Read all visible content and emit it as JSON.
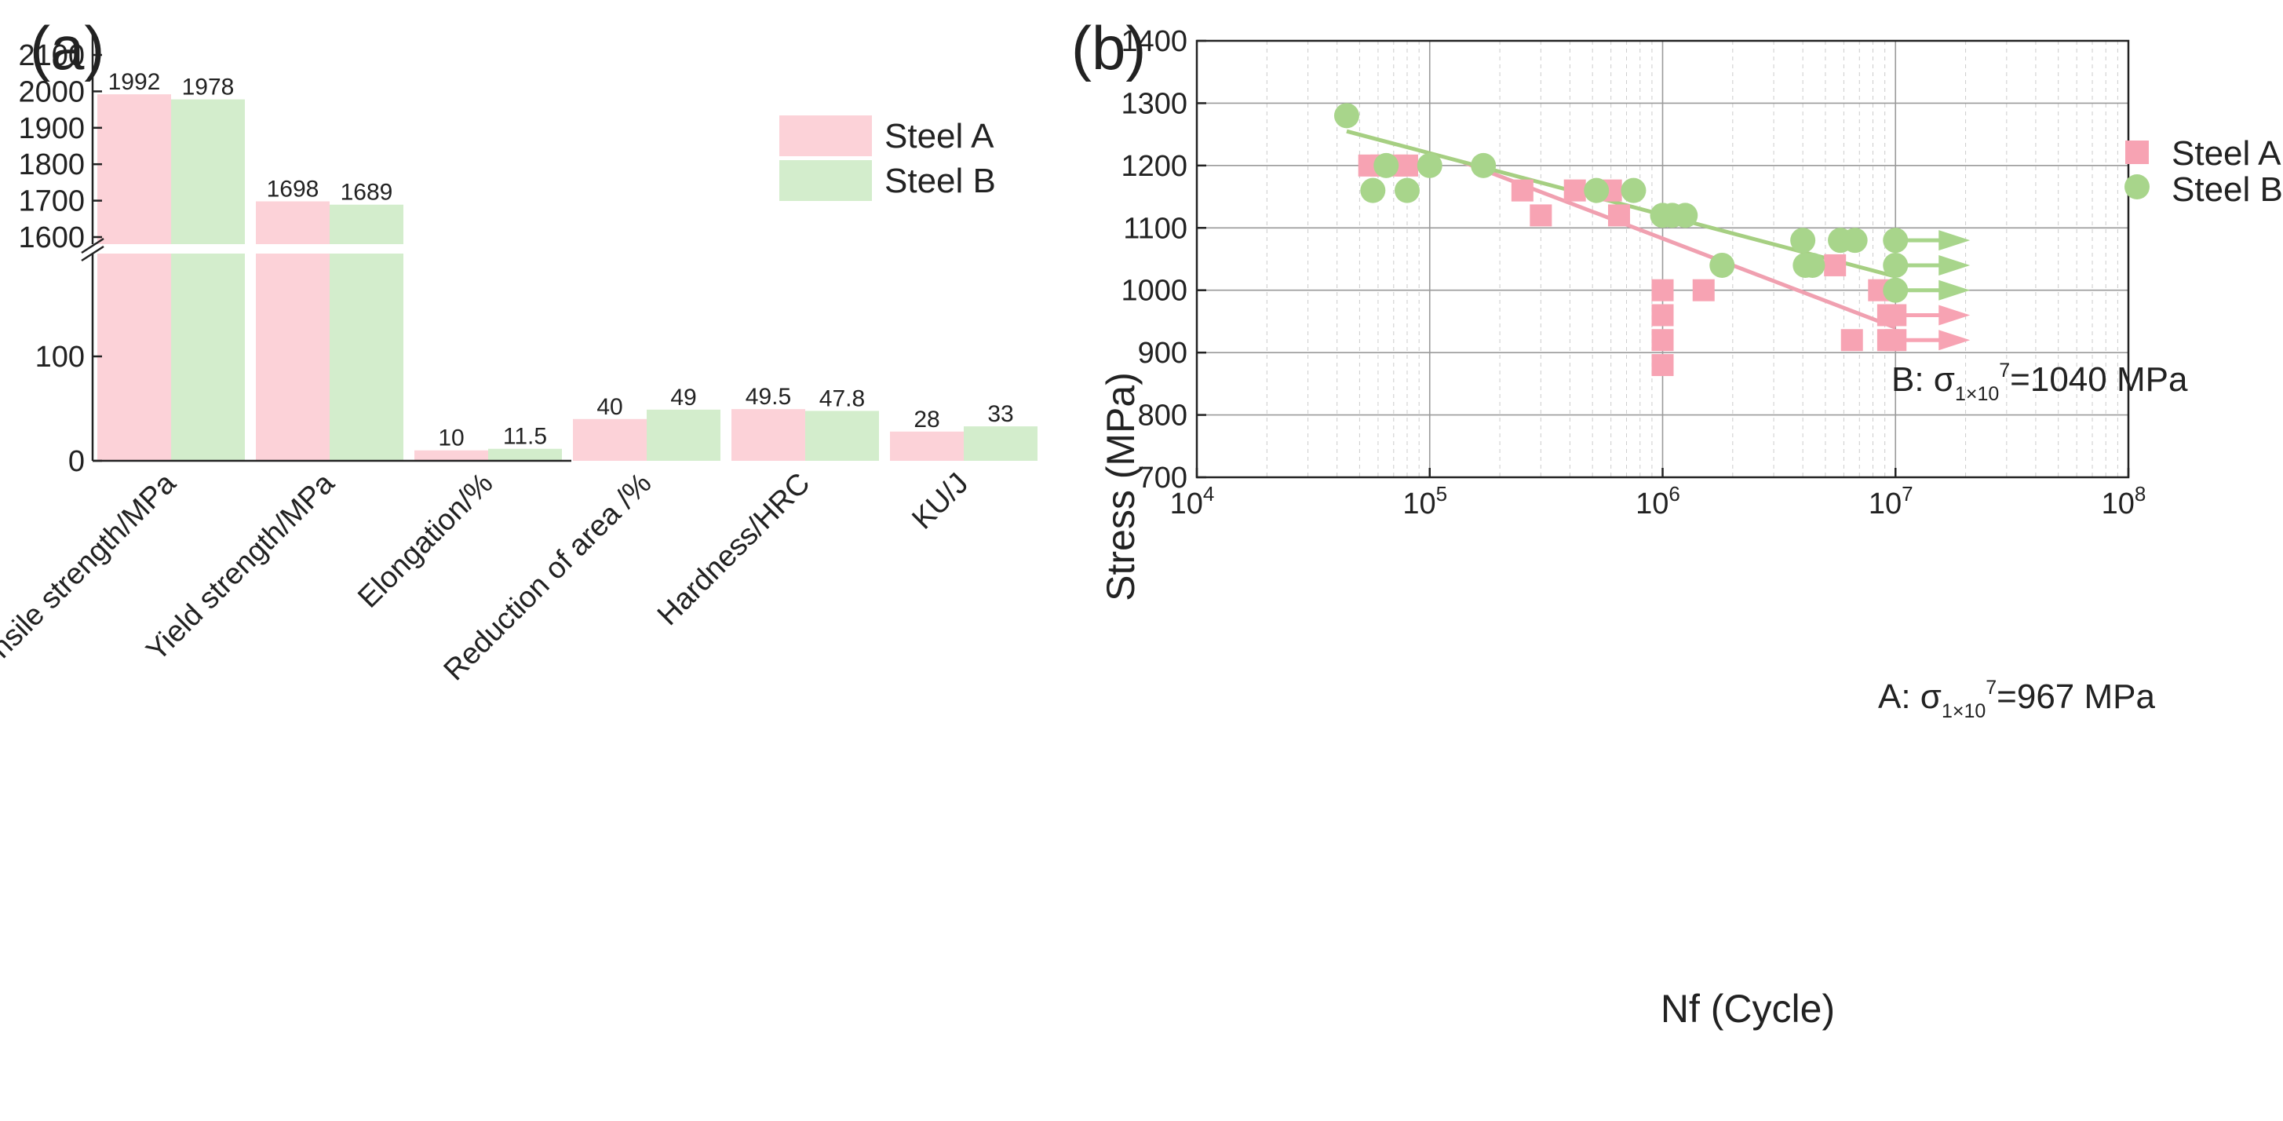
{
  "panels": {
    "a_label": "(a)",
    "b_label": "(b)"
  },
  "colors": {
    "steel_a": "#f7a3b3",
    "steel_b": "#a8d58b",
    "bar_a": "#fcd2d8",
    "bar_b": "#d3edcc",
    "line_a": "#f0a0b0",
    "line_b": "#a6cf82"
  },
  "chart_data": [
    {
      "type": "bar",
      "panel": "(a)",
      "categories": [
        "Tensile strength/MPa",
        "Yield strength/MPa",
        "Elongation/%",
        "Reduction of area /%",
        "Hardness/HRC",
        "KU/J"
      ],
      "series": [
        {
          "name": "Steel A",
          "values": [
            1992,
            1698,
            10,
            40,
            49.5,
            28
          ],
          "labels": [
            "1992",
            "1698",
            "10",
            "40",
            "49.5",
            "28"
          ]
        },
        {
          "name": "Steel B",
          "values": [
            1978,
            1689,
            11.5,
            49,
            47.8,
            33
          ],
          "labels": [
            "1978",
            "1689",
            "11.5",
            "49",
            "47.8",
            "33"
          ]
        }
      ],
      "y_axis": {
        "break": true,
        "lower_range": [
          0,
          200
        ],
        "upper_range": [
          1555,
          2150
        ],
        "lower_ticks": [
          0,
          100
        ],
        "upper_ticks": [
          1600,
          1700,
          1800,
          1900,
          2000,
          2100
        ]
      },
      "legend": {
        "position": "top-right",
        "entries": [
          "Steel A",
          "Steel B"
        ]
      },
      "grid": false
    },
    {
      "type": "scatter",
      "panel": "(b)",
      "xlabel": "Nf (Cycle)",
      "ylabel": "Stress (MPa)",
      "x_scale": "log",
      "xlim": [
        10000,
        100000000
      ],
      "ylim": [
        700,
        1400
      ],
      "x_ticks": [
        {
          "value": 10000,
          "base": "10",
          "exp": "4"
        },
        {
          "value": 100000,
          "base": "10",
          "exp": "5"
        },
        {
          "value": 1000000,
          "base": "10",
          "exp": "6"
        },
        {
          "value": 10000000,
          "base": "10",
          "exp": "7"
        },
        {
          "value": 100000000,
          "base": "10",
          "exp": "8"
        }
      ],
      "y_ticks": [
        700,
        800,
        900,
        1000,
        1100,
        1200,
        1300,
        1400
      ],
      "grid": true,
      "legend": {
        "position": "top-right",
        "entries": [
          "Steel A",
          "Steel B"
        ]
      },
      "series": [
        {
          "name": "Steel A",
          "marker": "square",
          "points": [
            [
              55000,
              1200
            ],
            [
              62000,
              1200
            ],
            [
              72000,
              1200
            ],
            [
              80000,
              1200
            ],
            [
              250000,
              1160
            ],
            [
              300000,
              1120
            ],
            [
              420000,
              1160
            ],
            [
              600000,
              1160
            ],
            [
              650000,
              1120
            ],
            [
              1000000,
              1000
            ],
            [
              1000000,
              960
            ],
            [
              1000000,
              920
            ],
            [
              1000000,
              880
            ],
            [
              1500000,
              1000
            ],
            [
              5500000,
              1040
            ],
            [
              6500000,
              920
            ],
            [
              8500000,
              1000
            ],
            [
              9300000,
              960
            ],
            [
              10000000,
              960
            ],
            [
              9300000,
              920
            ],
            [
              10000000,
              920
            ]
          ],
          "runouts": [
            [
              10000000,
              960
            ],
            [
              10000000,
              920
            ]
          ],
          "fit": {
            "x": [
              140000,
              10000000
            ],
            "y": [
              1205,
              940
            ]
          }
        },
        {
          "name": "Steel B",
          "marker": "circle",
          "points": [
            [
              44000,
              1280
            ],
            [
              57000,
              1160
            ],
            [
              65000,
              1200
            ],
            [
              80000,
              1160
            ],
            [
              100000,
              1200
            ],
            [
              170000,
              1200
            ],
            [
              520000,
              1160
            ],
            [
              750000,
              1160
            ],
            [
              1000000,
              1120
            ],
            [
              1100000,
              1120
            ],
            [
              1250000,
              1120
            ],
            [
              1800000,
              1040
            ],
            [
              4000000,
              1080
            ],
            [
              4100000,
              1040
            ],
            [
              4400000,
              1040
            ],
            [
              5800000,
              1080
            ],
            [
              6700000,
              1080
            ],
            [
              10000000,
              1080
            ],
            [
              10000000,
              1040
            ],
            [
              10000000,
              1000
            ]
          ],
          "runouts": [
            [
              10000000,
              1080
            ],
            [
              10000000,
              1040
            ],
            [
              10000000,
              1000
            ]
          ],
          "fit": {
            "x": [
              44000,
              10000000
            ],
            "y": [
              1255,
              1022
            ]
          }
        }
      ],
      "annotations": [
        {
          "prefix": "B: σ",
          "sub": "1×10",
          "sup": "7",
          "suffix": "=1040 MPa",
          "at": [
            1000000,
            1100
          ]
        },
        {
          "prefix": "A: σ",
          "sub": "1×10",
          "sup": "7",
          "suffix": "=967 MPa",
          "at": [
            1000000,
            865
          ]
        }
      ]
    }
  ]
}
